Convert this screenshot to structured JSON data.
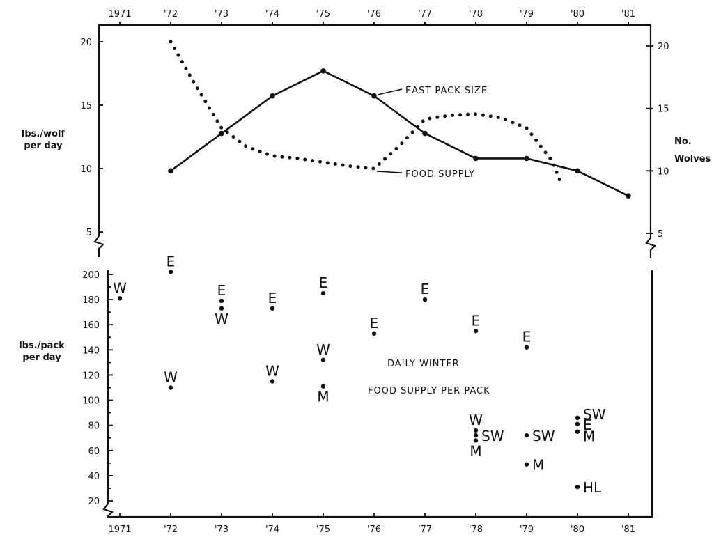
{
  "chart_data": [
    {
      "type": "line",
      "title": "",
      "x_labels_top": [
        "1971",
        "'72",
        "'73",
        "'74",
        "'75",
        "'76",
        "'77",
        "'78",
        "'79",
        "'80",
        "'81"
      ],
      "ylabel_left": [
        "lbs./wolf",
        "per day"
      ],
      "ylabel_right": [
        "No.",
        "Wolves"
      ],
      "ylim_left": [
        5,
        20
      ],
      "ylim_right": [
        5,
        20
      ],
      "yticks_left": [
        5,
        10,
        15,
        20
      ],
      "yticks_right": [
        5,
        10,
        15,
        20
      ],
      "series": [
        {
          "name": "EAST PACK SIZE",
          "style": "solid",
          "axis": "right",
          "x": [
            1972,
            1973,
            1974,
            1975,
            1976,
            1977,
            1978,
            1979,
            1980,
            1981
          ],
          "y": [
            10,
            13,
            16,
            18,
            16,
            13,
            11,
            11,
            10,
            8
          ]
        },
        {
          "name": "FOOD SUPPLY",
          "style": "dotted",
          "axis": "left",
          "x": [
            1972,
            1972.5,
            1973,
            1973.5,
            1974,
            1974.5,
            1975,
            1975.5,
            1976,
            1976.5,
            1977,
            1977.5,
            1978,
            1978.5,
            1979,
            1979.5,
            1979.7
          ],
          "y": [
            20,
            16.5,
            13.2,
            11.7,
            11,
            10.8,
            10.5,
            10.2,
            10,
            11.8,
            13.9,
            14.2,
            14.3,
            14,
            13.2,
            10.6,
            8.6
          ]
        }
      ]
    },
    {
      "type": "scatter",
      "title": [
        "DAILY WINTER",
        "FOOD SUPPLY PER PACK"
      ],
      "ylabel": [
        "lbs./pack",
        "per day"
      ],
      "ylim": [
        20,
        200
      ],
      "yticks": [
        20,
        40,
        60,
        80,
        100,
        120,
        140,
        160,
        180,
        200
      ],
      "x_labels_bottom": [
        "1971",
        "'72",
        "'73",
        "'74",
        "'75",
        "'76",
        "'77",
        "'78",
        "'79",
        "'80",
        "'81"
      ],
      "points": [
        {
          "x": 1971,
          "y": 181,
          "label": "W",
          "pos": "above"
        },
        {
          "x": 1972,
          "y": 202,
          "label": "E",
          "pos": "above"
        },
        {
          "x": 1972,
          "y": 110,
          "label": "W",
          "pos": "above"
        },
        {
          "x": 1973,
          "y": 179,
          "label": "E",
          "pos": "above"
        },
        {
          "x": 1973,
          "y": 173,
          "label": "W",
          "pos": "below"
        },
        {
          "x": 1974,
          "y": 173,
          "label": "E",
          "pos": "above"
        },
        {
          "x": 1974,
          "y": 115,
          "label": "W",
          "pos": "above"
        },
        {
          "x": 1975,
          "y": 185,
          "label": "E",
          "pos": "above"
        },
        {
          "x": 1975,
          "y": 132,
          "label": "W",
          "pos": "above"
        },
        {
          "x": 1975,
          "y": 111,
          "label": "M",
          "pos": "below"
        },
        {
          "x": 1976,
          "y": 153,
          "label": "E",
          "pos": "above"
        },
        {
          "x": 1977,
          "y": 180,
          "label": "E",
          "pos": "above"
        },
        {
          "x": 1978,
          "y": 155,
          "label": "E",
          "pos": "above"
        },
        {
          "x": 1978,
          "y": 76,
          "label": "W",
          "pos": "above"
        },
        {
          "x": 1978,
          "y": 72,
          "label": "SW",
          "pos": "right"
        },
        {
          "x": 1978,
          "y": 68,
          "label": "M",
          "pos": "below"
        },
        {
          "x": 1979,
          "y": 142,
          "label": "E",
          "pos": "above"
        },
        {
          "x": 1979,
          "y": 72,
          "label": "SW",
          "pos": "right"
        },
        {
          "x": 1979,
          "y": 49,
          "label": "M",
          "pos": "right"
        },
        {
          "x": 1980,
          "y": 86,
          "label": "SW",
          "pos": "above-right"
        },
        {
          "x": 1980,
          "y": 81,
          "label": "E",
          "pos": "right"
        },
        {
          "x": 1980,
          "y": 75,
          "label": "M",
          "pos": "below-right"
        },
        {
          "x": 1980,
          "y": 31,
          "label": "HL",
          "pos": "right"
        }
      ]
    }
  ]
}
